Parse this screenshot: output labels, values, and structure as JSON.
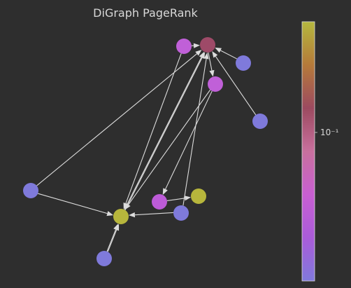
{
  "title": "DiGraph PageRank",
  "colorbar": {
    "tick_label": "10⁻¹",
    "scale": "log",
    "colors": [
      "#8079dc",
      "#aa5cd9",
      "#c85fd2",
      "#c8709d",
      "#9c4a60",
      "#b57a3a",
      "#b5b83e"
    ]
  },
  "nodes": [
    {
      "id": "n1",
      "color": "#9e4a68"
    },
    {
      "id": "n2",
      "color": "#c060d8"
    },
    {
      "id": "n3",
      "color": "#7f7adb"
    },
    {
      "id": "n4",
      "color": "#c060d8"
    },
    {
      "id": "n5",
      "color": "#7f7adb"
    },
    {
      "id": "n6",
      "color": "#7f7adb"
    },
    {
      "id": "n7",
      "color": "#b7b63c"
    },
    {
      "id": "n8",
      "color": "#b7b63c"
    },
    {
      "id": "n9",
      "color": "#bd5bd8"
    },
    {
      "id": "n10",
      "color": "#7f7adb"
    },
    {
      "id": "n11",
      "color": "#7f7adb"
    }
  ],
  "edges": [
    [
      "n2",
      "n1"
    ],
    [
      "n3",
      "n1"
    ],
    [
      "n5",
      "n1"
    ],
    [
      "n1",
      "n4"
    ],
    [
      "n6",
      "n1"
    ],
    [
      "n8",
      "n1"
    ],
    [
      "n8",
      "n1"
    ],
    [
      "n10",
      "n1"
    ],
    [
      "n2",
      "n8"
    ],
    [
      "n4",
      "n8"
    ],
    [
      "n4",
      "n9"
    ],
    [
      "n6",
      "n8"
    ],
    [
      "n9",
      "n7"
    ],
    [
      "n10",
      "n8"
    ],
    [
      "n11",
      "n8"
    ],
    [
      "n11",
      "n8"
    ]
  ]
}
